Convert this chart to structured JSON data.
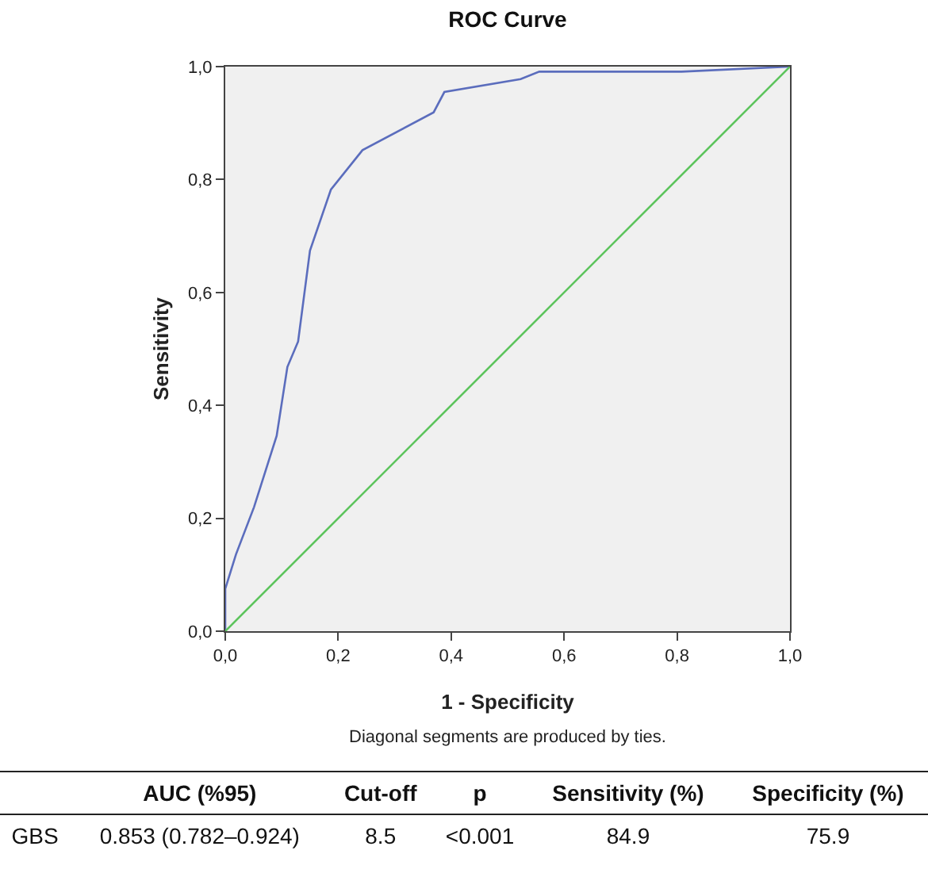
{
  "chart_data": {
    "type": "line",
    "title": "ROC Curve",
    "xlabel": "1 - Specificity",
    "ylabel": "Sensitivity",
    "series": [
      {
        "color": "#5b6dbd",
        "x": [
          0,
          0,
          0.019,
          0.051,
          0.091,
          0.11,
          0.129,
          0.15,
          0.187,
          0.243,
          0.369,
          0.388,
          0.523,
          0.556,
          0.808,
          1
        ],
        "values": [
          0,
          0.075,
          0.136,
          0.22,
          0.346,
          0.468,
          0.513,
          0.674,
          0.782,
          0.852,
          0.919,
          0.955,
          0.978,
          0.991,
          0.991,
          1
        ]
      },
      {
        "color": "#5cc45c",
        "x": [
          0,
          1
        ],
        "values": [
          0,
          1
        ]
      }
    ],
    "xlim": [
      0,
      1
    ],
    "ylim": [
      0,
      1
    ],
    "xticks": [
      {
        "value": 0,
        "label": "0,0"
      },
      {
        "value": 0.2,
        "label": "0,2"
      },
      {
        "value": 0.4,
        "label": "0,4"
      },
      {
        "value": 0.6,
        "label": "0,6"
      },
      {
        "value": 0.8,
        "label": "0,8"
      },
      {
        "value": 1,
        "label": "1,0"
      }
    ],
    "yticks": [
      {
        "value": 0,
        "label": "0,0"
      },
      {
        "value": 0.2,
        "label": "0,2"
      },
      {
        "value": 0.4,
        "label": "0,4"
      },
      {
        "value": 0.6,
        "label": "0,6"
      },
      {
        "value": 0.8,
        "label": "0,8"
      },
      {
        "value": 1,
        "label": "1,0"
      }
    ],
    "grid": false,
    "marker": "none",
    "line_style": "solid",
    "annotations": [
      "Diagonal segments are produced by ties.",
      "AUC (%95)",
      "Cut-off",
      "p",
      "Sensitivity (%)",
      "Specificity (%)",
      "GBS",
      "0.853 (0.782–0.924)",
      "8.5",
      "<0.001",
      "84.9",
      "75.9"
    ]
  }
}
